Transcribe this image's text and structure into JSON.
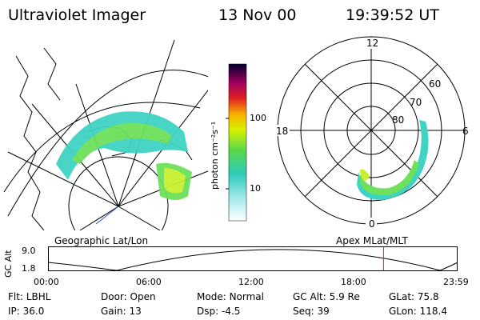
{
  "header": {
    "instrument": "Ultraviolet Imager",
    "date": "13 Nov 00",
    "time": "19:39:52 UT"
  },
  "geo_panel": {
    "label": "Geographic Lat/Lon"
  },
  "polar_panel": {
    "label": "Apex MLat/MLT",
    "mlt_labels": [
      "12",
      "18",
      "6",
      "0"
    ],
    "mlat_labels": [
      "60",
      "70",
      "80"
    ]
  },
  "colorbar": {
    "unit_label": "photon cm⁻²s⁻¹",
    "tick_labels": [
      "100",
      "10"
    ]
  },
  "altitude_plot": {
    "axis_label": "GC Alt",
    "y_ticks": [
      "9.0",
      "1.8"
    ],
    "x_ticks": [
      "00:00",
      "06:00",
      "12:00",
      "18:00",
      "23:59"
    ],
    "current_time_marker_hours": 19.66
  },
  "info": [
    {
      "label": "Flt:",
      "value": "LBHL"
    },
    {
      "label": "Door:",
      "value": "Open"
    },
    {
      "label": "Mode:",
      "value": "Normal"
    },
    {
      "label": "GC Alt:",
      "value": "5.9 Re"
    },
    {
      "label": "GLat:",
      "value": "75.8"
    },
    {
      "label": "IP:",
      "value": "36.0"
    },
    {
      "label": "Gain:",
      "value": "13"
    },
    {
      "label": "Dsp:",
      "value": "-4.5"
    },
    {
      "label": "Seq:",
      "value": "39"
    },
    {
      "label": "GLon:",
      "value": "118.4"
    }
  ],
  "colors": {
    "marker": "#e02020",
    "aurora_low": "#3fd3c4",
    "aurora_mid": "#6ee05a",
    "aurora_high": "#c8f030"
  }
}
